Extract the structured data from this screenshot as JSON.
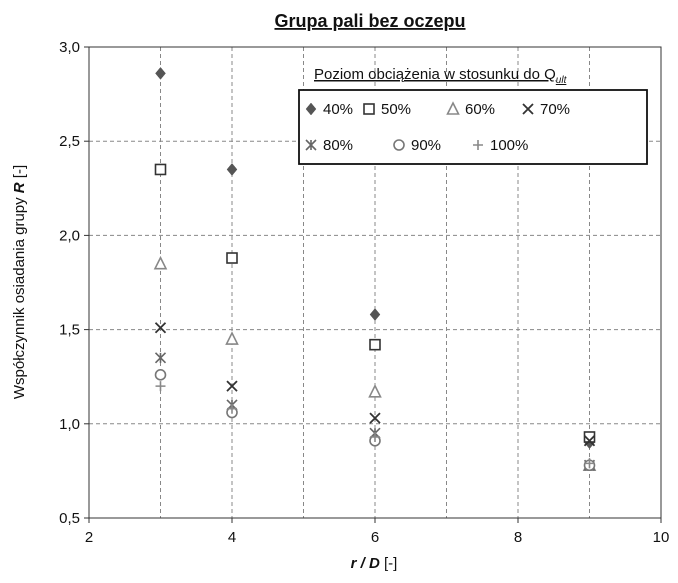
{
  "chart_data": {
    "type": "scatter",
    "title": "Grupa pali bez oczepu",
    "xlabel": {
      "main": "r / D",
      "unit": " [-]"
    },
    "ylabel": {
      "main": "Współczynnik osiadania grupy ",
      "symbol": "R",
      "unit": " [-]"
    },
    "xlim": [
      2,
      10
    ],
    "ylim": [
      0.5,
      3.0
    ],
    "x_ticks": [
      2,
      4,
      6,
      8,
      10
    ],
    "y_ticks": [
      0.5,
      1.0,
      1.5,
      2.0,
      2.5,
      3.0
    ],
    "x_tick_labels": [
      "2",
      "4",
      "6",
      "8",
      "10"
    ],
    "y_tick_labels": [
      "0,5",
      "1,0",
      "1,5",
      "2,0",
      "2,5",
      "3,0"
    ],
    "grid": true,
    "legend": {
      "title_main": "Poziom obciążenia w stosunku do Q",
      "title_sub": "ult",
      "placement": "top-right"
    },
    "series": [
      {
        "name": "40%",
        "marker": "diamond",
        "color": "#555555",
        "x": [
          3,
          4,
          6,
          9
        ],
        "y": [
          2.86,
          2.35,
          1.58,
          0.9
        ]
      },
      {
        "name": "50%",
        "marker": "square-open",
        "color": "#333333",
        "x": [
          3,
          4,
          6,
          9
        ],
        "y": [
          2.35,
          1.88,
          1.42,
          0.93
        ]
      },
      {
        "name": "60%",
        "marker": "triangle-open",
        "color": "#888888",
        "x": [
          3,
          4,
          6,
          9
        ],
        "y": [
          1.85,
          1.45,
          1.17,
          0.78
        ]
      },
      {
        "name": "70%",
        "marker": "x",
        "color": "#333333",
        "x": [
          3,
          4,
          6,
          9
        ],
        "y": [
          1.51,
          1.2,
          1.03,
          0.91
        ]
      },
      {
        "name": "80%",
        "marker": "asterisk",
        "color": "#666666",
        "x": [
          3,
          4,
          6,
          9
        ],
        "y": [
          1.35,
          1.1,
          0.95,
          0.78
        ]
      },
      {
        "name": "90%",
        "marker": "circle-open",
        "color": "#777777",
        "x": [
          3,
          4,
          6,
          9
        ],
        "y": [
          1.26,
          1.06,
          0.91,
          0.78
        ]
      },
      {
        "name": "100%",
        "marker": "plus",
        "color": "#888888",
        "x": [
          3,
          4,
          6,
          9
        ],
        "y": [
          1.2,
          1.08,
          0.93,
          0.79
        ]
      }
    ]
  }
}
